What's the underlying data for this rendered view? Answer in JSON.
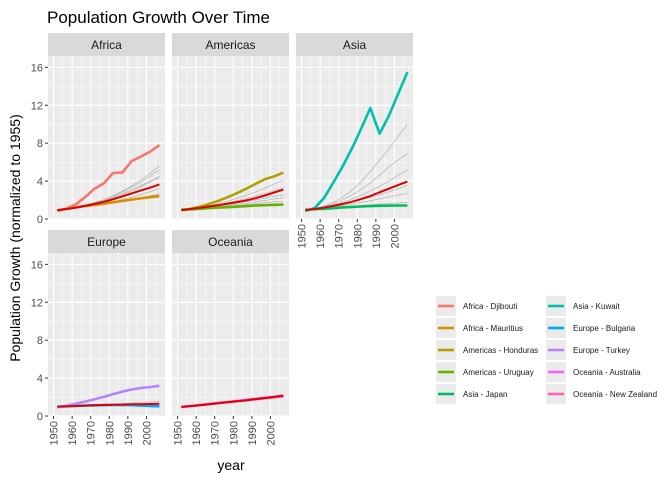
{
  "chart_data": {
    "type": "line",
    "title": "Population Growth Over Time",
    "xlabel": "year",
    "ylabel": "Population Growth (normalized to 1955)",
    "x_ticks": [
      1950,
      1960,
      1970,
      1980,
      1990,
      2000
    ],
    "y_ticks": [
      0,
      4,
      8,
      12,
      16
    ],
    "xlim": [
      1947,
      2010
    ],
    "ylim": [
      0,
      17.2
    ],
    "grid": true,
    "legend_position": "right",
    "facets": [
      "Africa",
      "Americas",
      "Asia",
      "Europe",
      "Oceania"
    ],
    "x": [
      1952,
      1957,
      1962,
      1967,
      1972,
      1977,
      1982,
      1987,
      1992,
      1997,
      2002,
      2007
    ],
    "median_color": "#dd0000",
    "background_color": "#999999",
    "median_series": {
      "Africa": [
        0.94,
        1.06,
        1.2,
        1.38,
        1.58,
        1.8,
        2.08,
        2.38,
        2.7,
        3.02,
        3.3,
        3.65
      ],
      "Americas": [
        0.94,
        1.06,
        1.18,
        1.32,
        1.47,
        1.62,
        1.78,
        1.96,
        2.2,
        2.48,
        2.8,
        3.1
      ],
      "Asia": [
        0.93,
        1.06,
        1.2,
        1.38,
        1.58,
        1.82,
        2.1,
        2.42,
        2.82,
        3.2,
        3.58,
        3.95
      ],
      "Europe": [
        0.98,
        1.02,
        1.06,
        1.1,
        1.13,
        1.16,
        1.18,
        1.2,
        1.23,
        1.25,
        1.27,
        1.29
      ],
      "Oceania": [
        0.96,
        1.04,
        1.14,
        1.24,
        1.35,
        1.45,
        1.55,
        1.66,
        1.78,
        1.9,
        2.02,
        2.16
      ]
    },
    "background_series": {
      "Africa": [
        [
          0.92,
          1.08,
          1.25,
          1.45,
          1.7,
          2.0,
          2.4,
          2.85,
          3.35,
          3.9,
          4.5,
          5.2
        ],
        [
          0.93,
          1.07,
          1.22,
          1.4,
          1.62,
          1.88,
          2.2,
          2.55,
          2.95,
          3.4,
          3.9,
          4.5
        ],
        [
          0.94,
          1.06,
          1.2,
          1.36,
          1.55,
          1.75,
          2.0,
          2.3,
          2.6,
          2.95,
          3.3,
          3.7
        ],
        [
          0.95,
          1.05,
          1.16,
          1.3,
          1.45,
          1.62,
          1.82,
          2.05,
          2.3,
          2.58,
          2.88,
          3.2
        ],
        [
          0.96,
          1.04,
          1.13,
          1.24,
          1.36,
          1.5,
          1.66,
          1.84,
          2.04,
          2.25,
          2.45,
          2.65
        ],
        [
          0.92,
          1.08,
          1.26,
          1.48,
          1.74,
          2.05,
          2.45,
          2.92,
          3.48,
          4.1,
          4.8,
          5.6
        ],
        [
          0.93,
          1.07,
          1.23,
          1.42,
          1.65,
          1.92,
          2.25,
          2.65,
          3.1,
          3.55,
          4.0,
          4.35
        ]
      ],
      "Americas": [
        [
          0.93,
          1.07,
          1.23,
          1.42,
          1.64,
          1.9,
          2.18,
          2.5,
          2.85,
          3.25,
          3.7,
          4.1
        ],
        [
          0.94,
          1.06,
          1.19,
          1.35,
          1.52,
          1.72,
          1.93,
          2.16,
          2.42,
          2.7,
          3.0,
          3.3
        ],
        [
          0.95,
          1.05,
          1.15,
          1.27,
          1.4,
          1.54,
          1.69,
          1.85,
          2.02,
          2.2,
          2.38,
          2.55
        ],
        [
          0.97,
          1.03,
          1.1,
          1.18,
          1.26,
          1.35,
          1.44,
          1.53,
          1.62,
          1.72,
          1.82,
          1.9
        ],
        [
          0.96,
          1.04,
          1.12,
          1.22,
          1.32,
          1.43,
          1.55,
          1.68,
          1.82,
          1.96,
          2.1,
          2.25
        ]
      ],
      "Asia": [
        [
          0.92,
          1.1,
          1.35,
          1.75,
          2.3,
          3.0,
          3.9,
          5.0,
          6.2,
          7.4,
          8.7,
          10.0
        ],
        [
          0.92,
          1.09,
          1.3,
          1.6,
          2.0,
          2.5,
          3.1,
          3.8,
          4.6,
          5.5,
          6.2,
          6.9
        ],
        [
          0.93,
          1.08,
          1.25,
          1.48,
          1.76,
          2.1,
          2.5,
          2.95,
          3.45,
          4.0,
          4.6,
          5.2
        ],
        [
          0.94,
          1.06,
          1.2,
          1.36,
          1.55,
          1.76,
          2.0,
          2.26,
          2.55,
          2.86,
          3.2,
          3.55
        ],
        [
          0.95,
          1.05,
          1.16,
          1.28,
          1.42,
          1.58,
          1.75,
          1.93,
          2.12,
          2.32,
          2.52,
          2.7
        ],
        [
          0.97,
          1.03,
          1.1,
          1.17,
          1.25,
          1.33,
          1.41,
          1.49,
          1.57,
          1.64,
          1.7,
          1.76
        ]
      ],
      "Europe": [
        [
          0.98,
          1.02,
          1.06,
          1.1,
          1.15,
          1.2,
          1.25,
          1.3,
          1.36,
          1.42,
          1.48,
          1.55
        ],
        [
          0.99,
          1.01,
          1.03,
          1.05,
          1.08,
          1.1,
          1.12,
          1.14,
          1.16,
          1.18,
          1.2,
          1.22
        ],
        [
          0.99,
          1.01,
          1.02,
          1.04,
          1.06,
          1.07,
          1.08,
          1.09,
          1.1,
          1.1,
          1.1,
          1.11
        ]
      ],
      "Oceania": []
    },
    "series": [
      {
        "name": "Africa - Djibouti",
        "facet": "Africa",
        "color": "#f8766d",
        "values": [
          0.85,
          1.1,
          1.55,
          2.3,
          3.2,
          3.75,
          4.85,
          4.9,
          6.1,
          6.6,
          7.1,
          7.8
        ]
      },
      {
        "name": "Africa - Mauritius",
        "facet": "Africa",
        "color": "#db8e00",
        "values": [
          0.9,
          1.08,
          1.22,
          1.38,
          1.5,
          1.62,
          1.76,
          1.9,
          2.05,
          2.18,
          2.3,
          2.42
        ]
      },
      {
        "name": "Americas - Honduras",
        "facet": "Americas",
        "color": "#aea200",
        "values": [
          0.92,
          1.08,
          1.3,
          1.58,
          1.92,
          2.3,
          2.72,
          3.2,
          3.7,
          4.2,
          4.5,
          4.9
        ]
      },
      {
        "name": "Americas - Uruguay",
        "facet": "Americas",
        "color": "#64b200",
        "values": [
          0.98,
          1.02,
          1.08,
          1.15,
          1.2,
          1.24,
          1.3,
          1.36,
          1.42,
          1.46,
          1.5,
          1.52
        ]
      },
      {
        "name": "Asia - Japan",
        "facet": "Asia",
        "color": "#00bd5c",
        "values": [
          0.97,
          1.03,
          1.08,
          1.14,
          1.22,
          1.28,
          1.32,
          1.36,
          1.39,
          1.41,
          1.42,
          1.42
        ]
      },
      {
        "name": "Asia - Kuwait",
        "facet": "Asia",
        "color": "#00c1a7",
        "values": [
          0.85,
          1.15,
          2.2,
          3.8,
          5.5,
          7.4,
          9.5,
          11.7,
          9.0,
          10.9,
          13.2,
          15.5
        ]
      },
      {
        "name": "Europe - Bulgaria",
        "facet": "Europe",
        "color": "#00a6ff",
        "values": [
          0.98,
          1.02,
          1.06,
          1.1,
          1.13,
          1.15,
          1.16,
          1.17,
          1.15,
          1.1,
          1.05,
          1.02
        ]
      },
      {
        "name": "Europe - Turkey",
        "facet": "Europe",
        "color": "#b385ff",
        "values": [
          0.9,
          1.1,
          1.3,
          1.52,
          1.76,
          2.02,
          2.3,
          2.58,
          2.8,
          2.95,
          3.05,
          3.2
        ]
      },
      {
        "name": "Oceania - Australia",
        "facet": "Oceania",
        "color": "#ef67eb",
        "values": [
          0.95,
          1.05,
          1.15,
          1.26,
          1.38,
          1.48,
          1.58,
          1.7,
          1.82,
          1.92,
          2.02,
          2.12
        ]
      },
      {
        "name": "Oceania - New Zealand",
        "facet": "Oceania",
        "color": "#ff63b6",
        "values": [
          0.95,
          1.05,
          1.16,
          1.27,
          1.38,
          1.48,
          1.57,
          1.66,
          1.76,
          1.87,
          1.97,
          2.07
        ]
      }
    ]
  }
}
